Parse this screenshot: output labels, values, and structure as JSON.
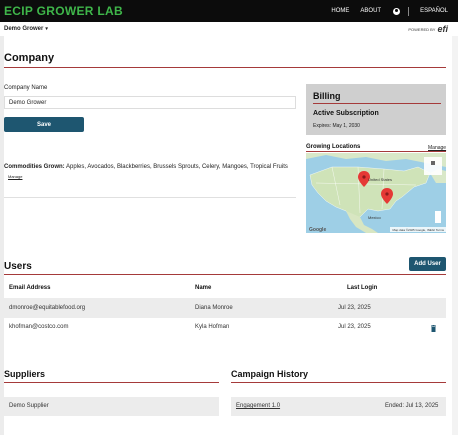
{
  "header": {
    "brand": "ECIP GROWER LAB",
    "nav": {
      "home": "HOME",
      "about": "ABOUT",
      "language": "ESPAÑOL"
    },
    "icons": {
      "user": "user-circle-icon"
    }
  },
  "subheader": {
    "grower_select": "Demo Grower",
    "powered_by": "POWERED BY",
    "logo": "efi"
  },
  "company": {
    "title": "Company",
    "name_label": "Company Name",
    "name_value": "Demo Grower",
    "save_label": "Save",
    "commodities_label": "Commodities Grown:",
    "commodities_value": "Apples, Avocados, Blackberries, Brussels Sprouts, Celery, Mangoes, Tropical Fruits",
    "commodities_manage": "Manage"
  },
  "billing": {
    "title": "Billing",
    "status": "Active Subscription",
    "expires": "Expires: May 1, 2030"
  },
  "growing_locations": {
    "title": "Growing Locations",
    "manage": "Manage",
    "map_labels": {
      "country": "United States",
      "mexico": "Mexico"
    },
    "google": "Google",
    "attribution": "Map data ©2025 Google, INEGI  Terms"
  },
  "users": {
    "title": "Users",
    "add_label": "Add User",
    "columns": {
      "email": "Email Address",
      "name": "Name",
      "last_login": "Last Login"
    },
    "rows": [
      {
        "email": "dmonroe@equitablefood.org",
        "name": "Diana Monroe",
        "last_login": "Jul 23, 2025"
      },
      {
        "email": "khofman@costco.com",
        "name": "Kyla Hofman",
        "last_login": "Jul 23, 2025"
      }
    ]
  },
  "suppliers": {
    "title": "Suppliers",
    "items": [
      {
        "name": "Demo Supplier"
      }
    ]
  },
  "campaigns": {
    "title": "Campaign History",
    "items": [
      {
        "name": "Engagement 1.0",
        "status": "Ended: Jul 13, 2025"
      }
    ]
  },
  "colors": {
    "brand_green": "#3fb64a",
    "topbar": "#0c0c0c",
    "button": "#1e5670",
    "rule": "#a53a3a",
    "billing_panel": "#cfcfcf"
  }
}
